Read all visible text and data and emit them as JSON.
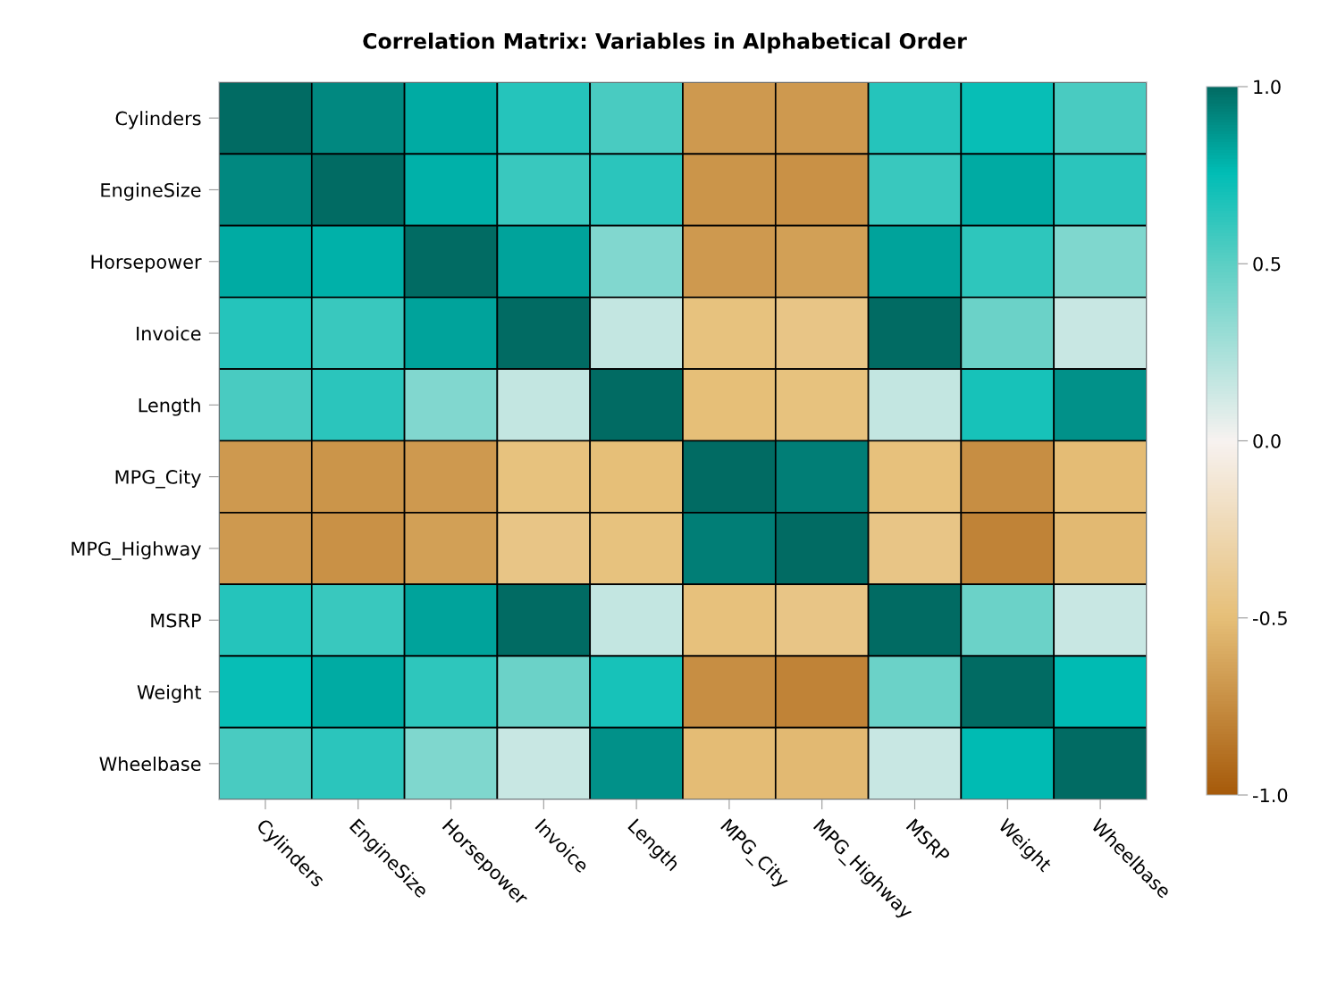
{
  "chart_data": {
    "type": "heatmap",
    "title": "Correlation Matrix: Variables in Alphabetical Order",
    "categories": [
      "Cylinders",
      "EngineSize",
      "Horsepower",
      "Invoice",
      "Length",
      "MPG_City",
      "MPG_Highway",
      "MSRP",
      "Weight",
      "Wheelbase"
    ],
    "y_categories": [
      "Cylinders",
      "EngineSize",
      "Horsepower",
      "Invoice",
      "Length",
      "MPG_City",
      "MPG_Highway",
      "MSRP",
      "Weight",
      "Wheelbase"
    ],
    "cells": [
      [
        1.0,
        0.91,
        0.81,
        0.65,
        0.55,
        -0.68,
        -0.68,
        0.65,
        0.74,
        0.55
      ],
      [
        0.91,
        1.0,
        0.79,
        0.6,
        0.64,
        -0.71,
        -0.72,
        0.6,
        0.81,
        0.64
      ],
      [
        0.81,
        0.79,
        1.0,
        0.83,
        0.38,
        -0.68,
        -0.65,
        0.83,
        0.63,
        0.39
      ],
      [
        0.65,
        0.6,
        0.83,
        1.0,
        0.17,
        -0.47,
        -0.44,
        1.0,
        0.45,
        0.15
      ],
      [
        0.55,
        0.64,
        0.38,
        0.17,
        1.0,
        -0.5,
        -0.47,
        0.17,
        0.69,
        0.89
      ],
      [
        -0.68,
        -0.71,
        -0.68,
        -0.47,
        -0.5,
        1.0,
        0.94,
        -0.48,
        -0.74,
        -0.51
      ],
      [
        -0.68,
        -0.72,
        -0.65,
        -0.44,
        -0.47,
        0.94,
        1.0,
        -0.44,
        -0.79,
        -0.53
      ],
      [
        0.65,
        0.6,
        0.83,
        1.0,
        0.17,
        -0.48,
        -0.44,
        1.0,
        0.45,
        0.15
      ],
      [
        0.74,
        0.81,
        0.63,
        0.45,
        0.69,
        -0.74,
        -0.79,
        0.45,
        1.0,
        0.76
      ],
      [
        0.55,
        0.64,
        0.39,
        0.15,
        0.89,
        -0.51,
        -0.53,
        0.15,
        0.76,
        1.0
      ]
    ],
    "clim": [
      -1.0,
      1.0
    ],
    "cticks": [
      {
        "value": 1.0,
        "label": "1.0"
      },
      {
        "value": 0.5,
        "label": "0.5"
      },
      {
        "value": 0.0,
        "label": "0.0"
      },
      {
        "value": -0.5,
        "label": "-0.5"
      },
      {
        "value": -1.0,
        "label": "-1.0"
      }
    ]
  }
}
